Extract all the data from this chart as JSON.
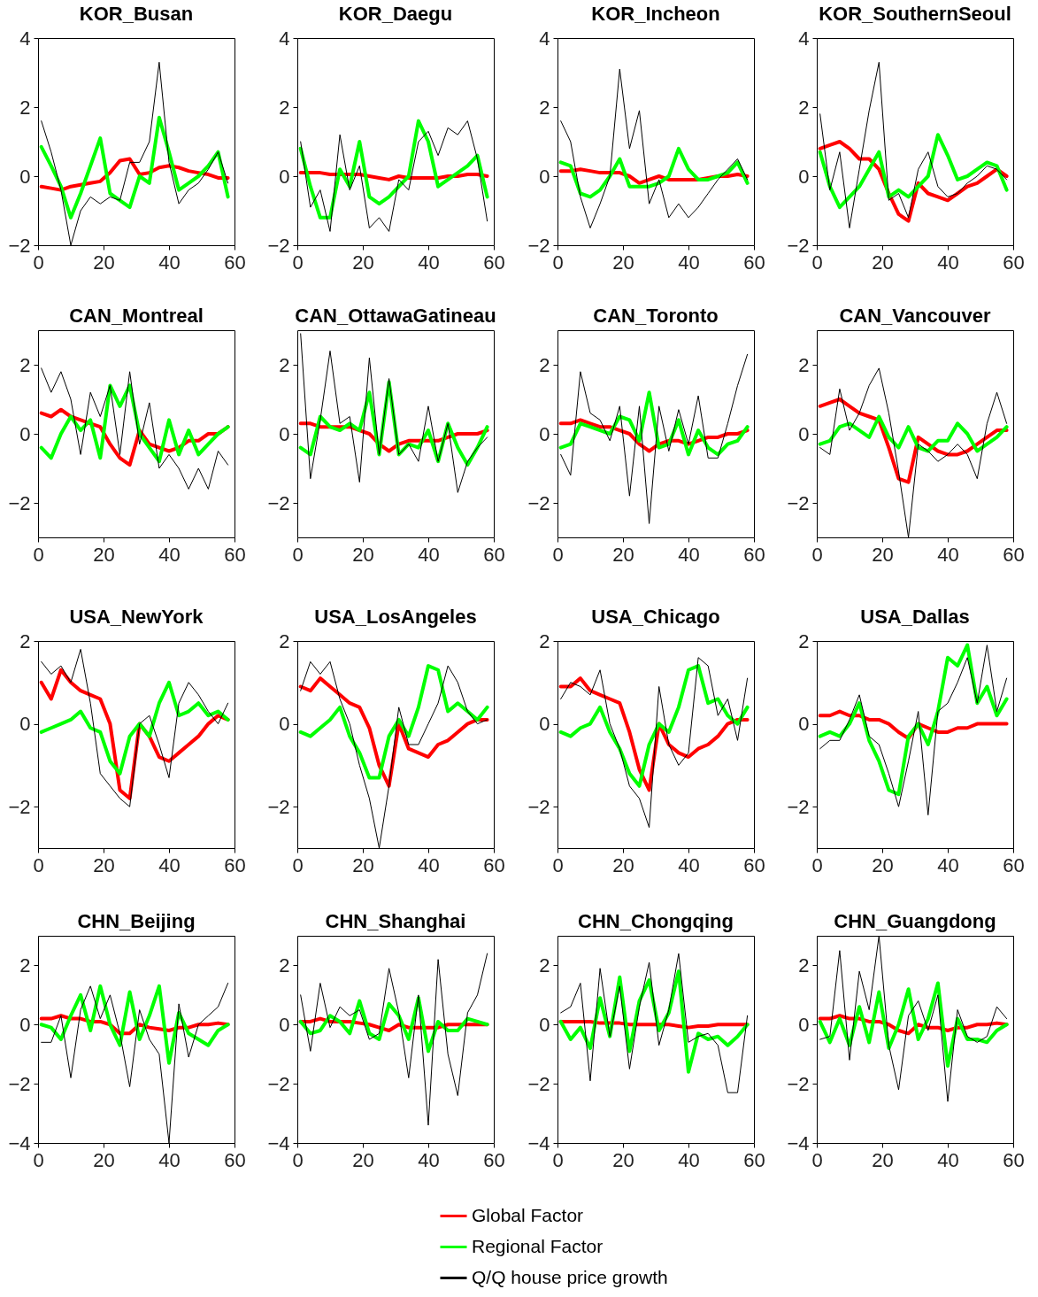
{
  "chart_data": [
    {
      "type": "line",
      "title": "KOR_Busan",
      "x": [
        1,
        4,
        7,
        10,
        13,
        16,
        19,
        22,
        25,
        28,
        31,
        34,
        37,
        40,
        43,
        46,
        49,
        52,
        55,
        58
      ],
      "xlim": [
        0,
        60
      ],
      "xticks": [
        0,
        20,
        40,
        60
      ],
      "ylim": [
        -2,
        4
      ],
      "yticks": [
        -2,
        0,
        2,
        4
      ],
      "series": [
        {
          "color": "#ff0000",
          "values": [
            -0.3,
            -0.35,
            -0.4,
            -0.3,
            -0.25,
            -0.2,
            -0.15,
            0.1,
            0.45,
            0.5,
            0.05,
            0.1,
            0.25,
            0.3,
            0.25,
            0.15,
            0.1,
            0.05,
            -0.05,
            -0.05
          ]
        },
        {
          "color": "#00ff00",
          "values": [
            0.85,
            0.3,
            -0.3,
            -1.2,
            -0.5,
            0.3,
            1.1,
            -0.5,
            -0.7,
            -0.9,
            0,
            -0.2,
            1.7,
            0.7,
            -0.4,
            -0.2,
            0,
            0.3,
            0.7,
            -0.6
          ]
        },
        {
          "color": "#000000",
          "values": [
            1.6,
            0.7,
            -0.4,
            -2.0,
            -1.0,
            -0.6,
            -0.8,
            -0.6,
            -0.7,
            0.4,
            0.4,
            1.0,
            3.3,
            0.4,
            -0.8,
            -0.4,
            -0.2,
            0.2,
            0.7,
            -0.2
          ]
        }
      ]
    },
    {
      "type": "line",
      "title": "KOR_Daegu",
      "x": [
        1,
        4,
        7,
        10,
        13,
        16,
        19,
        22,
        25,
        28,
        31,
        34,
        37,
        40,
        43,
        46,
        49,
        52,
        55,
        58
      ],
      "xlim": [
        0,
        60
      ],
      "xticks": [
        0,
        20,
        40,
        60
      ],
      "ylim": [
        -2,
        4
      ],
      "yticks": [
        -2,
        0,
        2,
        4
      ],
      "series": [
        {
          "color": "#ff0000",
          "values": [
            0.1,
            0.1,
            0.1,
            0.05,
            0.05,
            0.05,
            0.05,
            0,
            -0.05,
            -0.1,
            0,
            -0.05,
            -0.05,
            -0.05,
            -0.05,
            0,
            0,
            0.05,
            0.05,
            0
          ]
        },
        {
          "color": "#00ff00",
          "values": [
            0.8,
            -0.3,
            -1.2,
            -1.2,
            0.2,
            -0.3,
            1.0,
            -0.6,
            -0.8,
            -0.6,
            -0.3,
            0,
            1.6,
            1.0,
            -0.3,
            -0.1,
            0.1,
            0.3,
            0.6,
            -0.6
          ]
        },
        {
          "color": "#000000",
          "values": [
            1.0,
            -0.9,
            -0.4,
            -1.6,
            1.2,
            -0.4,
            0.3,
            -1.5,
            -1.2,
            -1.6,
            -0.1,
            -0.4,
            1.0,
            1.3,
            0.6,
            1.4,
            1.2,
            1.6,
            0.5,
            -1.3
          ]
        }
      ]
    },
    {
      "type": "line",
      "title": "KOR_Incheon",
      "x": [
        1,
        4,
        7,
        10,
        13,
        16,
        19,
        22,
        25,
        28,
        31,
        34,
        37,
        40,
        43,
        46,
        49,
        52,
        55,
        58
      ],
      "xlim": [
        0,
        60
      ],
      "xticks": [
        0,
        20,
        40,
        60
      ],
      "ylim": [
        -2,
        4
      ],
      "yticks": [
        -2,
        0,
        2,
        4
      ],
      "series": [
        {
          "color": "#ff0000",
          "values": [
            0.15,
            0.15,
            0.2,
            0.15,
            0.1,
            0.1,
            0.1,
            0,
            -0.2,
            -0.1,
            0,
            -0.1,
            -0.1,
            -0.1,
            -0.1,
            -0.05,
            0,
            0,
            0.05,
            0
          ]
        },
        {
          "color": "#00ff00",
          "values": [
            0.4,
            0.3,
            -0.5,
            -0.6,
            -0.4,
            0,
            0.5,
            -0.3,
            -0.3,
            -0.3,
            -0.2,
            0,
            0.8,
            0.2,
            -0.1,
            -0.1,
            0,
            0.1,
            0.4,
            -0.2
          ]
        },
        {
          "color": "#000000",
          "values": [
            1.6,
            1.0,
            -0.6,
            -1.5,
            -0.8,
            0,
            3.1,
            0.8,
            1.9,
            -0.8,
            -0.1,
            -1.2,
            -0.8,
            -1.2,
            -0.9,
            -0.5,
            -0.1,
            0.2,
            0.5,
            -0.1
          ]
        }
      ]
    },
    {
      "type": "line",
      "title": "KOR_SouthernSeoul",
      "x": [
        1,
        4,
        7,
        10,
        13,
        16,
        19,
        22,
        25,
        28,
        31,
        34,
        37,
        40,
        43,
        46,
        49,
        52,
        55,
        58
      ],
      "xlim": [
        0,
        60
      ],
      "xticks": [
        0,
        20,
        40,
        60
      ],
      "ylim": [
        -2,
        4
      ],
      "yticks": [
        -2,
        0,
        2,
        4
      ],
      "series": [
        {
          "color": "#ff0000",
          "values": [
            0.8,
            0.9,
            1.0,
            0.8,
            0.5,
            0.5,
            0.2,
            -0.5,
            -1.1,
            -1.3,
            -0.2,
            -0.5,
            -0.6,
            -0.7,
            -0.5,
            -0.3,
            -0.2,
            0,
            0.2,
            0
          ]
        },
        {
          "color": "#00ff00",
          "values": [
            0.7,
            -0.3,
            -0.9,
            -0.6,
            -0.3,
            0.2,
            0.7,
            -0.6,
            -0.4,
            -0.6,
            -0.3,
            0,
            1.2,
            0.6,
            -0.1,
            0,
            0.2,
            0.4,
            0.3,
            -0.4
          ]
        },
        {
          "color": "#000000",
          "values": [
            1.8,
            -0.4,
            0.7,
            -1.5,
            0.2,
            1.9,
            3.3,
            -0.7,
            -0.5,
            -1.2,
            0.2,
            0.7,
            -0.3,
            -0.6,
            -0.5,
            -0.2,
            0,
            0.3,
            0.2,
            -0.1
          ]
        }
      ]
    },
    {
      "type": "line",
      "title": "CAN_Montreal",
      "x": [
        1,
        4,
        7,
        10,
        13,
        16,
        19,
        22,
        25,
        28,
        31,
        34,
        37,
        40,
        43,
        46,
        49,
        52,
        55,
        58
      ],
      "xlim": [
        0,
        60
      ],
      "xticks": [
        0,
        20,
        40,
        60
      ],
      "ylim": [
        -3,
        3
      ],
      "yticks": [
        -2,
        0,
        2
      ],
      "series": [
        {
          "color": "#ff0000",
          "values": [
            0.6,
            0.5,
            0.7,
            0.5,
            0.4,
            0.3,
            0.2,
            -0.3,
            -0.7,
            -0.9,
            0.1,
            -0.3,
            -0.4,
            -0.5,
            -0.4,
            -0.2,
            -0.2,
            0,
            0,
            0.2
          ]
        },
        {
          "color": "#00ff00",
          "values": [
            -0.4,
            -0.7,
            0,
            0.5,
            0.1,
            0.4,
            -0.7,
            1.4,
            0.8,
            1.4,
            0,
            -0.4,
            -0.8,
            0.4,
            -0.6,
            0.1,
            -0.6,
            -0.3,
            0,
            0.2
          ]
        },
        {
          "color": "#000000",
          "values": [
            1.9,
            1.2,
            1.8,
            1.0,
            -0.6,
            1.2,
            0.5,
            1.4,
            -0.6,
            1.8,
            -0.3,
            0.9,
            -1.0,
            -0.6,
            -1.0,
            -1.6,
            -1.0,
            -1.6,
            -0.5,
            -0.9
          ]
        }
      ]
    },
    {
      "type": "line",
      "title": "CAN_OttawaGatineau",
      "x": [
        1,
        4,
        7,
        10,
        13,
        16,
        19,
        22,
        25,
        28,
        31,
        34,
        37,
        40,
        43,
        46,
        49,
        52,
        55,
        58
      ],
      "xlim": [
        0,
        60
      ],
      "xticks": [
        0,
        20,
        40,
        60
      ],
      "ylim": [
        -3,
        3
      ],
      "yticks": [
        -2,
        0,
        2
      ],
      "series": [
        {
          "color": "#ff0000",
          "values": [
            0.3,
            0.3,
            0.2,
            0.2,
            0.2,
            0.2,
            0.1,
            0,
            -0.3,
            -0.5,
            -0.3,
            -0.2,
            -0.2,
            -0.2,
            -0.2,
            -0.1,
            0,
            0,
            0,
            0.1
          ]
        },
        {
          "color": "#00ff00",
          "values": [
            -0.4,
            -0.6,
            0.5,
            0.2,
            0.1,
            0.3,
            0.1,
            1.2,
            -0.6,
            1.5,
            -0.6,
            -0.3,
            -0.4,
            0.1,
            -0.8,
            0.3,
            -0.4,
            -0.9,
            -0.4,
            0.2
          ]
        },
        {
          "color": "#000000",
          "values": [
            2.9,
            -1.3,
            0.4,
            2.4,
            0.3,
            0.5,
            -1.4,
            2.2,
            -0.6,
            1.6,
            -0.6,
            -0.3,
            -0.8,
            0.8,
            -0.8,
            0.3,
            -1.7,
            -0.8,
            -0.4,
            -0.1
          ]
        }
      ]
    },
    {
      "type": "line",
      "title": "CAN_Toronto",
      "x": [
        1,
        4,
        7,
        10,
        13,
        16,
        19,
        22,
        25,
        28,
        31,
        34,
        37,
        40,
        43,
        46,
        49,
        52,
        55,
        58
      ],
      "xlim": [
        0,
        60
      ],
      "xticks": [
        0,
        20,
        40,
        60
      ],
      "ylim": [
        -3,
        3
      ],
      "yticks": [
        -2,
        0,
        2
      ],
      "series": [
        {
          "color": "#ff0000",
          "values": [
            0.3,
            0.3,
            0.4,
            0.3,
            0.2,
            0.2,
            0.1,
            0,
            -0.3,
            -0.5,
            -0.3,
            -0.2,
            -0.2,
            -0.3,
            -0.2,
            -0.1,
            -0.1,
            0,
            0,
            0.1
          ]
        },
        {
          "color": "#00ff00",
          "values": [
            -0.4,
            -0.3,
            0.3,
            0.2,
            0.1,
            0,
            0.5,
            0.4,
            -0.2,
            1.2,
            -0.4,
            -0.3,
            0.4,
            -0.6,
            0.1,
            -0.4,
            -0.6,
            -0.3,
            -0.2,
            0.2
          ]
        },
        {
          "color": "#000000",
          "values": [
            -0.6,
            -1.2,
            1.8,
            0.6,
            0.4,
            -0.2,
            0.8,
            -1.8,
            0.8,
            -2.6,
            0.8,
            -0.5,
            0.7,
            -0.3,
            1.1,
            -0.7,
            -0.7,
            0.3,
            1.4,
            2.3
          ]
        }
      ]
    },
    {
      "type": "line",
      "title": "CAN_Vancouver",
      "x": [
        1,
        4,
        7,
        10,
        13,
        16,
        19,
        22,
        25,
        28,
        31,
        34,
        37,
        40,
        43,
        46,
        49,
        52,
        55,
        58
      ],
      "xlim": [
        0,
        60
      ],
      "xticks": [
        0,
        20,
        40,
        60
      ],
      "ylim": [
        -3,
        3
      ],
      "yticks": [
        -2,
        0,
        2
      ],
      "series": [
        {
          "color": "#ff0000",
          "values": [
            0.8,
            0.9,
            1.0,
            0.8,
            0.6,
            0.5,
            0.4,
            -0.4,
            -1.3,
            -1.4,
            -0.1,
            -0.3,
            -0.5,
            -0.6,
            -0.6,
            -0.5,
            -0.3,
            -0.1,
            0.1,
            0.1
          ]
        },
        {
          "color": "#00ff00",
          "values": [
            -0.3,
            -0.2,
            0.2,
            0.3,
            0.1,
            -0.1,
            0.5,
            -0.1,
            -0.4,
            0.2,
            -0.4,
            -0.5,
            -0.2,
            -0.2,
            0.3,
            0,
            -0.5,
            -0.3,
            -0.1,
            0.2
          ]
        },
        {
          "color": "#000000",
          "values": [
            -0.4,
            -0.6,
            1.3,
            0.1,
            0.6,
            1.4,
            1.9,
            0.6,
            -1.1,
            -3.0,
            -0.3,
            -0.5,
            -0.8,
            -0.6,
            -0.3,
            -0.6,
            -1.3,
            0.3,
            1.2,
            0.3
          ]
        }
      ]
    },
    {
      "type": "line",
      "title": "USA_NewYork",
      "x": [
        1,
        4,
        7,
        10,
        13,
        16,
        19,
        22,
        25,
        28,
        31,
        34,
        37,
        40,
        43,
        46,
        49,
        52,
        55,
        58
      ],
      "xlim": [
        0,
        60
      ],
      "xticks": [
        0,
        20,
        40,
        60
      ],
      "ylim": [
        -3,
        2
      ],
      "yticks": [
        -2,
        0,
        2
      ],
      "series": [
        {
          "color": "#ff0000",
          "values": [
            1.0,
            0.6,
            1.3,
            1.0,
            0.8,
            0.7,
            0.6,
            0,
            -1.6,
            -1.8,
            0,
            -0.3,
            -0.8,
            -0.9,
            -0.7,
            -0.5,
            -0.3,
            0,
            0.2,
            0.1
          ]
        },
        {
          "color": "#00ff00",
          "values": [
            -0.2,
            -0.1,
            0,
            0.1,
            0.3,
            -0.1,
            -0.2,
            -0.9,
            -1.2,
            -0.3,
            0,
            -0.3,
            0.5,
            1.0,
            0.2,
            0.3,
            0.5,
            0.2,
            0.3,
            0.1
          ]
        },
        {
          "color": "#000000",
          "values": [
            1.5,
            1.2,
            1.4,
            1.0,
            1.8,
            0.5,
            -1.2,
            -1.5,
            -1.8,
            -2.0,
            0.0,
            0.2,
            -0.5,
            -1.3,
            0.5,
            1.0,
            0.7,
            0.3,
            0,
            0.5
          ]
        }
      ]
    },
    {
      "type": "line",
      "title": "USA_LosAngeles",
      "x": [
        1,
        4,
        7,
        10,
        13,
        16,
        19,
        22,
        25,
        28,
        31,
        34,
        37,
        40,
        43,
        46,
        49,
        52,
        55,
        58
      ],
      "xlim": [
        0,
        60
      ],
      "xticks": [
        0,
        20,
        40,
        60
      ],
      "ylim": [
        -3,
        2
      ],
      "yticks": [
        -2,
        0,
        2
      ],
      "series": [
        {
          "color": "#ff0000",
          "values": [
            0.9,
            0.8,
            1.1,
            0.9,
            0.7,
            0.5,
            0.4,
            -0.1,
            -1.0,
            -1.5,
            0,
            -0.6,
            -0.7,
            -0.8,
            -0.5,
            -0.4,
            -0.2,
            0,
            0.1,
            0.1
          ]
        },
        {
          "color": "#00ff00",
          "values": [
            -0.2,
            -0.3,
            -0.1,
            0.1,
            0.4,
            -0.3,
            -0.7,
            -1.3,
            -1.3,
            -0.3,
            0.1,
            -0.3,
            0.4,
            1.4,
            1.3,
            0.3,
            0.5,
            0.3,
            0.1,
            0.4
          ]
        },
        {
          "color": "#000000",
          "values": [
            0.8,
            1.5,
            1.2,
            1.5,
            0.6,
            0,
            -1.0,
            -1.8,
            -3.0,
            -1.5,
            0.4,
            -0.5,
            -0.5,
            0,
            0.5,
            1.4,
            1.0,
            0.3,
            0,
            0.1
          ]
        }
      ]
    },
    {
      "type": "line",
      "title": "USA_Chicago",
      "x": [
        1,
        4,
        7,
        10,
        13,
        16,
        19,
        22,
        25,
        28,
        31,
        34,
        37,
        40,
        43,
        46,
        49,
        52,
        55,
        58
      ],
      "xlim": [
        0,
        60
      ],
      "xticks": [
        0,
        20,
        40,
        60
      ],
      "ylim": [
        -3,
        2
      ],
      "yticks": [
        -2,
        0,
        2
      ],
      "series": [
        {
          "color": "#ff0000",
          "values": [
            0.9,
            0.9,
            1.1,
            0.8,
            0.7,
            0.6,
            0.5,
            -0.2,
            -1.1,
            -1.6,
            0,
            -0.5,
            -0.7,
            -0.8,
            -0.6,
            -0.5,
            -0.3,
            0,
            0.1,
            0.1
          ]
        },
        {
          "color": "#00ff00",
          "values": [
            -0.2,
            -0.3,
            -0.1,
            0,
            0.4,
            -0.2,
            -0.6,
            -1.2,
            -1.5,
            -0.5,
            0,
            -0.2,
            0.4,
            1.3,
            1.4,
            0.5,
            0.6,
            0.2,
            0,
            0.4
          ]
        },
        {
          "color": "#000000",
          "values": [
            0.6,
            1.0,
            0.9,
            0.7,
            1.3,
            0,
            -0.6,
            -1.5,
            -1.8,
            -2.5,
            0.9,
            -0.5,
            -1.0,
            -0.7,
            1.6,
            1.4,
            0.2,
            0.6,
            -0.4,
            1.1
          ]
        }
      ]
    },
    {
      "type": "line",
      "title": "USA_Dallas",
      "x": [
        1,
        4,
        7,
        10,
        13,
        16,
        19,
        22,
        25,
        28,
        31,
        34,
        37,
        40,
        43,
        46,
        49,
        52,
        55,
        58
      ],
      "xlim": [
        0,
        60
      ],
      "xticks": [
        0,
        20,
        40,
        60
      ],
      "ylim": [
        -3,
        2
      ],
      "yticks": [
        -2,
        0,
        2
      ],
      "series": [
        {
          "color": "#ff0000",
          "values": [
            0.2,
            0.2,
            0.3,
            0.2,
            0.2,
            0.1,
            0.1,
            0,
            -0.2,
            -0.35,
            0,
            -0.1,
            -0.2,
            -0.2,
            -0.1,
            -0.1,
            0,
            0,
            0,
            0
          ]
        },
        {
          "color": "#00ff00",
          "values": [
            -0.3,
            -0.2,
            -0.3,
            0,
            0.5,
            -0.4,
            -0.9,
            -1.6,
            -1.7,
            -0.3,
            0,
            -0.5,
            0.3,
            1.6,
            1.4,
            1.9,
            0.5,
            0.9,
            0.2,
            0.6
          ]
        },
        {
          "color": "#000000",
          "values": [
            -0.6,
            -0.4,
            -0.4,
            0.1,
            0.7,
            -0.3,
            -0.5,
            -1.2,
            -2.0,
            -0.9,
            0.3,
            -2.2,
            0.3,
            0.5,
            1.0,
            1.6,
            0.5,
            1.9,
            0.3,
            1.1
          ]
        }
      ]
    },
    {
      "type": "line",
      "title": "CHN_Beijing",
      "x": [
        1,
        4,
        7,
        10,
        13,
        16,
        19,
        22,
        25,
        28,
        31,
        34,
        37,
        40,
        43,
        46,
        49,
        52,
        55,
        58
      ],
      "xlim": [
        0,
        60
      ],
      "xticks": [
        0,
        20,
        40,
        60
      ],
      "ylim": [
        -4,
        3
      ],
      "yticks": [
        -4,
        -2,
        0,
        2
      ],
      "series": [
        {
          "color": "#ff0000",
          "values": [
            0.2,
            0.2,
            0.3,
            0.2,
            0.2,
            0.1,
            0.1,
            0,
            -0.3,
            -0.3,
            0,
            -0.1,
            -0.15,
            -0.2,
            -0.1,
            -0.1,
            0,
            0,
            0.05,
            0
          ]
        },
        {
          "color": "#00ff00",
          "values": [
            0,
            -0.1,
            -0.5,
            0.3,
            1.0,
            -0.2,
            1.3,
            0,
            -0.7,
            1.1,
            -0.5,
            0.3,
            1.3,
            -1.3,
            0.4,
            -0.3,
            -0.5,
            -0.7,
            -0.2,
            0
          ]
        },
        {
          "color": "#000000",
          "values": [
            -0.6,
            -0.6,
            0.3,
            -1.8,
            0.5,
            1.3,
            0.2,
            1.0,
            -0.3,
            -2.1,
            0.5,
            -0.5,
            -1.0,
            -4.0,
            0.7,
            -1.1,
            0,
            0.3,
            0.6,
            1.4
          ]
        }
      ]
    },
    {
      "type": "line",
      "title": "CHN_Shanghai",
      "legend": "bottom",
      "x": [
        1,
        4,
        7,
        10,
        13,
        16,
        19,
        22,
        25,
        28,
        31,
        34,
        37,
        40,
        43,
        46,
        49,
        52,
        55,
        58
      ],
      "xlim": [
        0,
        60
      ],
      "xticks": [
        0,
        20,
        40,
        60
      ],
      "ylim": [
        -4,
        3
      ],
      "yticks": [
        -4,
        -2,
        0,
        2
      ],
      "series": [
        {
          "name": "Global Factor",
          "color": "#ff0000",
          "values": [
            0.1,
            0.1,
            0.2,
            0.1,
            0.1,
            0.1,
            0.05,
            0,
            -0.1,
            -0.2,
            0,
            -0.1,
            -0.1,
            -0.1,
            -0.1,
            0,
            0,
            0,
            0,
            0
          ]
        },
        {
          "name": "Regional Factor",
          "color": "#00ff00",
          "values": [
            0.1,
            -0.3,
            -0.2,
            0.3,
            0.1,
            -0.3,
            0.8,
            -0.3,
            -0.5,
            0.7,
            0.3,
            -0.5,
            0.9,
            -0.9,
            0.1,
            -0.2,
            -0.2,
            0.2,
            0.1,
            0
          ]
        },
        {
          "name": "Q/Q house price growth",
          "color": "#000000",
          "values": [
            1.0,
            -0.9,
            1.4,
            -0.1,
            0.6,
            0.3,
            0.5,
            -0.5,
            -0.3,
            1.9,
            0.4,
            -1.8,
            1.0,
            -3.4,
            2.2,
            -1.0,
            -2.4,
            0.4,
            1.0,
            2.4
          ]
        }
      ]
    },
    {
      "type": "line",
      "title": "CHN_Chongqing",
      "x": [
        1,
        4,
        7,
        10,
        13,
        16,
        19,
        22,
        25,
        28,
        31,
        34,
        37,
        40,
        43,
        46,
        49,
        52,
        55,
        58
      ],
      "xlim": [
        0,
        60
      ],
      "xticks": [
        0,
        20,
        40,
        60
      ],
      "ylim": [
        -4,
        3
      ],
      "yticks": [
        -4,
        -2,
        0,
        2
      ],
      "series": [
        {
          "color": "#ff0000",
          "values": [
            0.1,
            0.1,
            0.1,
            0.1,
            0.05,
            0.05,
            0.05,
            0,
            0,
            0,
            0,
            0,
            -0.05,
            -0.1,
            -0.05,
            -0.05,
            0,
            0,
            0,
            0
          ]
        },
        {
          "color": "#00ff00",
          "values": [
            0.1,
            -0.5,
            -0.1,
            -0.8,
            0.9,
            -0.4,
            1.6,
            -0.9,
            0.8,
            1.5,
            -0.2,
            0.4,
            1.8,
            -1.6,
            -0.3,
            -0.5,
            -0.4,
            -0.7,
            -0.4,
            0
          ]
        },
        {
          "color": "#000000",
          "values": [
            0.4,
            0.6,
            1.4,
            -1.9,
            1.9,
            -0.4,
            1.3,
            -1.5,
            0.6,
            2.1,
            -0.7,
            0.5,
            2.4,
            -0.6,
            -0.4,
            -0.3,
            -0.7,
            -2.3,
            -2.3,
            0.3
          ]
        }
      ]
    },
    {
      "type": "line",
      "title": "CHN_Guangdong",
      "x": [
        1,
        4,
        7,
        10,
        13,
        16,
        19,
        22,
        25,
        28,
        31,
        34,
        37,
        40,
        43,
        46,
        49,
        52,
        55,
        58
      ],
      "xlim": [
        0,
        60
      ],
      "xticks": [
        0,
        20,
        40,
        60
      ],
      "ylim": [
        -4,
        3
      ],
      "yticks": [
        -4,
        -2,
        0,
        2
      ],
      "series": [
        {
          "color": "#ff0000",
          "values": [
            0.2,
            0.2,
            0.3,
            0.2,
            0.2,
            0.1,
            0.1,
            0,
            -0.2,
            -0.3,
            0,
            -0.1,
            -0.1,
            -0.2,
            -0.1,
            -0.1,
            0,
            0,
            0.05,
            0
          ]
        },
        {
          "color": "#00ff00",
          "values": [
            0.1,
            -0.6,
            0.2,
            -0.7,
            0.6,
            -0.6,
            1.1,
            -0.8,
            0,
            1.2,
            -0.5,
            0.2,
            1.4,
            -1.4,
            0.2,
            -0.5,
            -0.5,
            -0.6,
            -0.2,
            0
          ]
        },
        {
          "color": "#000000",
          "values": [
            -0.5,
            -0.4,
            2.5,
            -1.2,
            1.8,
            0.5,
            3.0,
            -0.7,
            -2.2,
            0.3,
            0.8,
            -0.2,
            1.0,
            -2.6,
            0.5,
            -0.4,
            -0.6,
            -0.4,
            0.6,
            0.2
          ]
        }
      ]
    }
  ]
}
